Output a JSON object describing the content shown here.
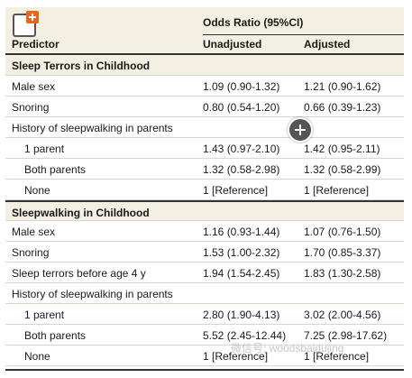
{
  "header": {
    "odds_ratio_label": "Odds Ratio (95%CI)",
    "predictor_label": "Predictor",
    "unadjusted_label": "Unadjusted",
    "adjusted_label": "Adjusted"
  },
  "rows": [
    {
      "type": "section",
      "predictor": "Sleep Terrors in Childhood"
    },
    {
      "type": "data",
      "predictor": "Male sex",
      "unadjusted": "1.09 (0.90-1.32)",
      "adjusted": "1.21 (0.90-1.62)"
    },
    {
      "type": "data",
      "predictor": "Snoring",
      "unadjusted": "0.80 (0.54-1.20)",
      "adjusted": "0.66 (0.39-1.23)"
    },
    {
      "type": "data",
      "predictor": "History of sleepwalking in parents"
    },
    {
      "type": "sub",
      "predictor": "1 parent",
      "unadjusted": "1.43 (0.97-2.10)",
      "adjusted": "1.42 (0.95-2.11)"
    },
    {
      "type": "sub",
      "predictor": "Both parents",
      "unadjusted": "1.32 (0.58-2.98)",
      "adjusted": "1.32 (0.58-2.99)"
    },
    {
      "type": "sub",
      "predictor": "None",
      "unadjusted": "1 [Reference]",
      "adjusted": "1 [Reference]"
    },
    {
      "type": "section",
      "predictor": "Sleepwalking in Childhood"
    },
    {
      "type": "data",
      "predictor": "Male sex",
      "unadjusted": "1.16 (0.93-1.44)",
      "adjusted": "1.07 (0.76-1.50)"
    },
    {
      "type": "data",
      "predictor": "Snoring",
      "unadjusted": "1.53 (1.00-2.32)",
      "adjusted": "1.70 (0.85-3.37)"
    },
    {
      "type": "data",
      "predictor": "Sleep terrors before age 4 y",
      "unadjusted": "1.94 (1.54-2.45)",
      "adjusted": "1.83 (1.30-2.58)"
    },
    {
      "type": "data",
      "predictor": "History of sleepwalking in parents"
    },
    {
      "type": "sub",
      "predictor": "1 parent",
      "unadjusted": "2.80 (1.90-4.13)",
      "adjusted": "3.02 (2.00-4.56)"
    },
    {
      "type": "sub",
      "predictor": "Both parents",
      "unadjusted": "5.52 (2.45-12.44)",
      "adjusted": "7.25 (2.98-17.62)"
    },
    {
      "type": "sub",
      "predictor": "None",
      "unadjusted": "1 [Reference]",
      "adjusted": "1 [Reference]"
    }
  ],
  "watermark": "微信号: woodsbaidujing",
  "colors": {
    "header_bg": "#f3efe2",
    "logo_accent": "#e8651c",
    "zoom_button": "#555555"
  },
  "icons": {
    "logo": "expand-figure-icon",
    "zoom": "plus-icon"
  }
}
